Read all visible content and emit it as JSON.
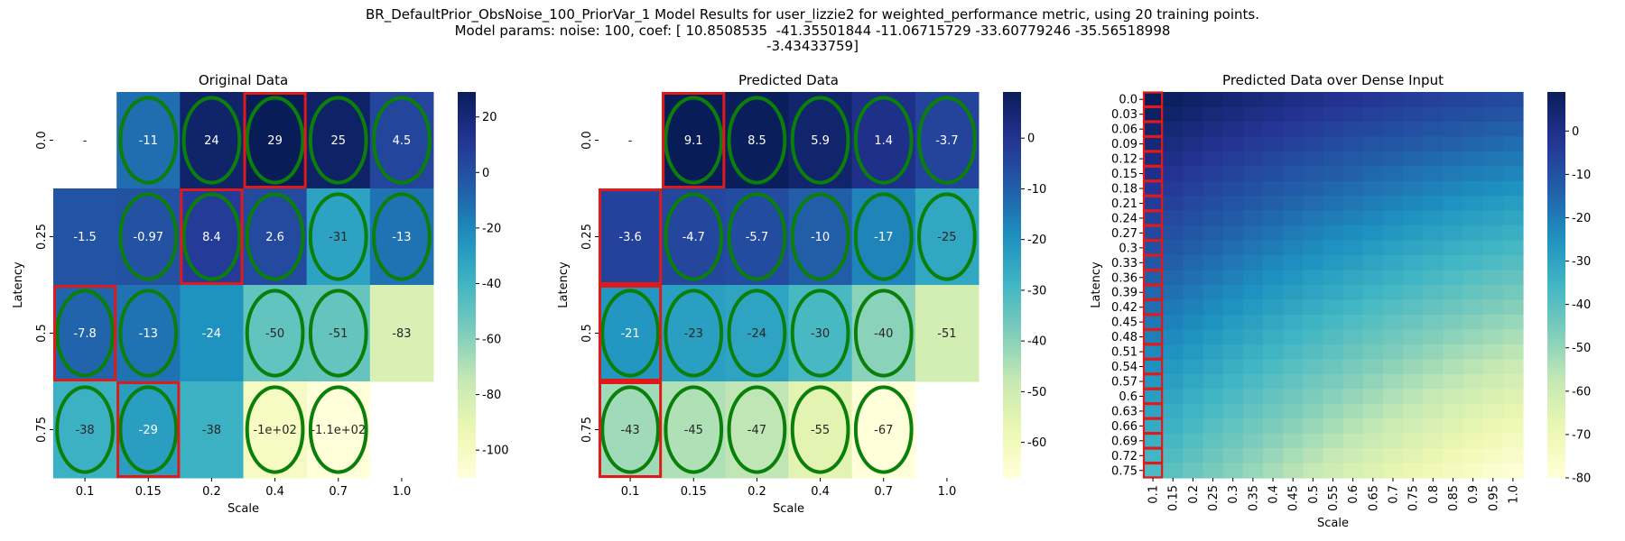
{
  "suptitle": {
    "line1": "BR_DefaultPrior_ObsNoise_100_PriorVar_1 Model Results for user_lizzie2 for weighted_performance metric, using 20 training points.",
    "line2": "Model params: noise: 100, coef: [ 10.8508535  -41.35501844 -11.06715729 -33.60779246 -35.56518998",
    "line3": "-3.43433759]"
  },
  "chart_data": [
    {
      "type": "heatmap",
      "title": "Original Data",
      "xlabel": "Scale",
      "ylabel": "Latency",
      "x": [
        "0.1",
        "0.15",
        "0.2",
        "0.4",
        "0.7",
        "1.0"
      ],
      "y": [
        "0.0",
        "0.25",
        "0.5",
        "0.75"
      ],
      "values": [
        [
          null,
          -11,
          24,
          29,
          25,
          4.5
        ],
        [
          -1.5,
          -0.97,
          8.4,
          2.6,
          -31,
          -13
        ],
        [
          -7.8,
          -13,
          -24,
          -50,
          -51,
          -83
        ],
        [
          -38,
          -29,
          -38,
          -100,
          -110,
          null
        ]
      ],
      "labels": [
        [
          "-",
          "-11",
          "24",
          "29",
          "25",
          "4.5"
        ],
        [
          "-1.5",
          "-0.97",
          "8.4",
          "2.6",
          "-31",
          "-13"
        ],
        [
          "-7.8",
          "-13",
          "-24",
          "-50",
          "-51",
          "-83"
        ],
        [
          "-38",
          "-29",
          "-38",
          "-1e+02",
          "-1.1e+02",
          ""
        ]
      ],
      "vmin": -110,
      "vmax": 29,
      "colorbar_ticks": [
        20,
        0,
        -20,
        -40,
        -60,
        -80,
        -100
      ],
      "green_ellipses": [
        [
          0,
          1
        ],
        [
          0,
          2
        ],
        [
          0,
          3
        ],
        [
          0,
          4
        ],
        [
          0,
          5
        ],
        [
          1,
          1
        ],
        [
          1,
          2
        ],
        [
          1,
          3
        ],
        [
          1,
          4
        ],
        [
          1,
          5
        ],
        [
          2,
          0
        ],
        [
          2,
          1
        ],
        [
          2,
          3
        ],
        [
          2,
          4
        ],
        [
          3,
          0
        ],
        [
          3,
          1
        ],
        [
          3,
          3
        ],
        [
          3,
          4
        ]
      ],
      "red_boxes": [
        [
          0,
          3
        ],
        [
          1,
          2
        ],
        [
          2,
          0
        ],
        [
          3,
          1
        ]
      ],
      "colormap": "YlGnBu"
    },
    {
      "type": "heatmap",
      "title": "Predicted Data",
      "xlabel": "Scale",
      "ylabel": "Latency",
      "x": [
        "0.1",
        "0.15",
        "0.2",
        "0.4",
        "0.7",
        "1.0"
      ],
      "y": [
        "0.0",
        "0.25",
        "0.5",
        "0.75"
      ],
      "values": [
        [
          null,
          9.1,
          8.5,
          5.9,
          1.4,
          -3.7
        ],
        [
          -3.6,
          -4.7,
          -5.7,
          -10,
          -17,
          -25
        ],
        [
          -21,
          -23,
          -24,
          -30,
          -40,
          -51
        ],
        [
          -43,
          -45,
          -47,
          -55,
          -67,
          null
        ]
      ],
      "labels": [
        [
          "-",
          "9.1",
          "8.5",
          "5.9",
          "1.4",
          "-3.7"
        ],
        [
          "-3.6",
          "-4.7",
          "-5.7",
          "-10",
          "-17",
          "-25"
        ],
        [
          "-21",
          "-23",
          "-24",
          "-30",
          "-40",
          "-51"
        ],
        [
          "-43",
          "-45",
          "-47",
          "-55",
          "-67",
          ""
        ]
      ],
      "vmin": -67,
      "vmax": 9.1,
      "colorbar_ticks": [
        0,
        -10,
        -20,
        -30,
        -40,
        -50,
        -60
      ],
      "green_ellipses": [
        [
          0,
          1
        ],
        [
          0,
          2
        ],
        [
          0,
          3
        ],
        [
          0,
          4
        ],
        [
          0,
          5
        ],
        [
          1,
          1
        ],
        [
          1,
          2
        ],
        [
          1,
          3
        ],
        [
          1,
          4
        ],
        [
          1,
          5
        ],
        [
          2,
          0
        ],
        [
          2,
          1
        ],
        [
          2,
          2
        ],
        [
          2,
          3
        ],
        [
          2,
          4
        ],
        [
          3,
          0
        ],
        [
          3,
          1
        ],
        [
          3,
          2
        ],
        [
          3,
          3
        ],
        [
          3,
          4
        ]
      ],
      "red_boxes": [
        [
          0,
          1
        ],
        [
          1,
          0
        ],
        [
          2,
          0
        ],
        [
          3,
          0
        ]
      ],
      "colormap": "YlGnBu"
    },
    {
      "type": "heatmap",
      "title": "Predicted Data over Dense Input",
      "xlabel": "Scale",
      "ylabel": "Latency",
      "x": [
        "0.1",
        "0.15",
        "0.2",
        "0.25",
        "0.3",
        "0.35",
        "0.4",
        "0.45",
        "0.5",
        "0.55",
        "0.6",
        "0.65",
        "0.7",
        "0.75",
        "0.8",
        "0.85",
        "0.9",
        "0.95",
        "1.0"
      ],
      "y": [
        "0.0",
        "0.03",
        "0.06",
        "0.09",
        "0.12",
        "0.15",
        "0.18",
        "0.21",
        "0.24",
        "0.27",
        "0.3",
        "0.33",
        "0.36",
        "0.39",
        "0.42",
        "0.45",
        "0.48",
        "0.51",
        "0.54",
        "0.57",
        "0.6",
        "0.63",
        "0.66",
        "0.69",
        "0.72",
        "0.75"
      ],
      "vmin": -80,
      "vmax": 9,
      "colorbar_ticks": [
        0,
        -10,
        -20,
        -30,
        -40,
        -50,
        -60,
        -70,
        -80
      ],
      "red_column": "0.1",
      "colormap": "YlGnBu"
    }
  ]
}
